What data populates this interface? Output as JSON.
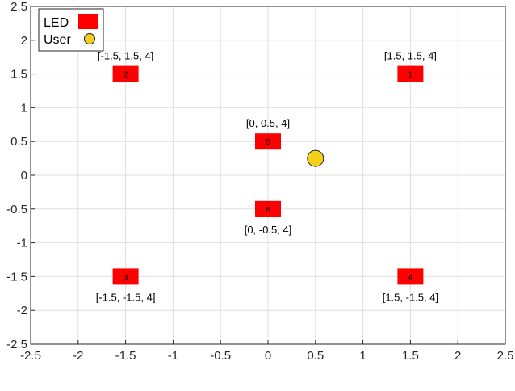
{
  "chart_data": {
    "type": "scatter",
    "title": "",
    "xlabel": "",
    "ylabel": "",
    "xlim": [
      -2.5,
      2.5
    ],
    "ylim": [
      -2.5,
      2.5
    ],
    "xticks": [
      "-2.5",
      "-2",
      "-1.5",
      "-1",
      "-0.5",
      "0",
      "0.5",
      "1",
      "1.5",
      "2",
      "2.5"
    ],
    "yticks": [
      "2.5",
      "2",
      "1.5",
      "1",
      "0.5",
      "0",
      "-0.5",
      "-1",
      "-1.5",
      "-2",
      "-2.5"
    ],
    "grid": true,
    "legend": {
      "position": "top-left",
      "entries": [
        {
          "label": "LED",
          "marker": "square",
          "color": "#ff0000"
        },
        {
          "label": "User",
          "marker": "circle",
          "color": "#f2d01c"
        }
      ]
    },
    "series": [
      {
        "name": "LED",
        "marker": "square",
        "color": "#ff0000",
        "points": [
          {
            "x": 1.5,
            "y": 1.5,
            "label": "1",
            "annotation": "[1.5, 1.5, 4]"
          },
          {
            "x": -1.5,
            "y": 1.5,
            "label": "2",
            "annotation": "[-1.5, 1.5, 4]"
          },
          {
            "x": -1.5,
            "y": -1.5,
            "label": "3",
            "annotation": "[-1.5, -1.5, 4]"
          },
          {
            "x": 1.5,
            "y": -1.5,
            "label": "4",
            "annotation": "[1.5, -1.5, 4]"
          },
          {
            "x": 0,
            "y": 0.5,
            "label": "5",
            "annotation": "[0, 0.5, 4]"
          },
          {
            "x": 0,
            "y": -0.5,
            "label": "6",
            "annotation": "[0, -0.5, 4]"
          }
        ]
      },
      {
        "name": "User",
        "marker": "circle",
        "color": "#f2d01c",
        "points": [
          {
            "x": 0.5,
            "y": 0.25
          }
        ]
      }
    ]
  }
}
